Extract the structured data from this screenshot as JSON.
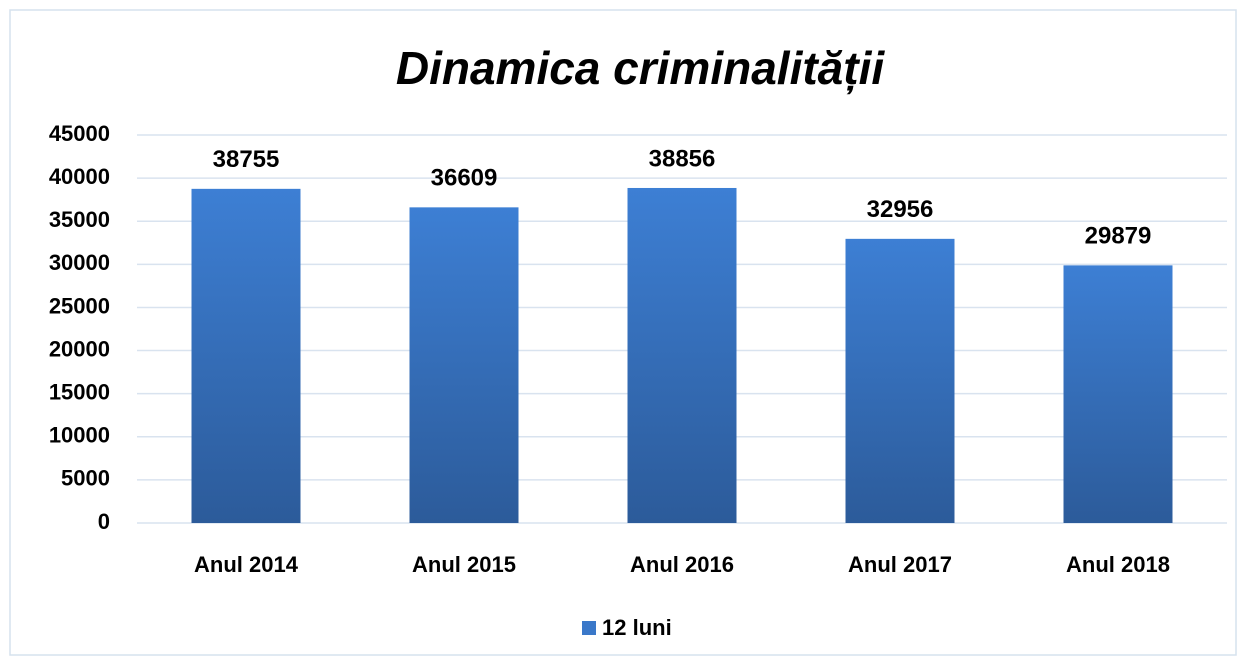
{
  "chart_data": {
    "type": "bar",
    "title": "Dinamica criminalității",
    "categories": [
      "Anul 2014",
      "Anul 2015",
      "Anul 2016",
      "Anul 2017",
      "Anul 2018"
    ],
    "series": [
      {
        "name": "12 luni",
        "color": "#3a78c9",
        "values": [
          38755,
          36609,
          38856,
          32956,
          29879
        ]
      }
    ],
    "ylim": [
      0,
      45000
    ],
    "yticks": [
      0,
      5000,
      10000,
      15000,
      20000,
      25000,
      30000,
      35000,
      40000,
      45000
    ],
    "grid": true,
    "legend": "bottom"
  }
}
